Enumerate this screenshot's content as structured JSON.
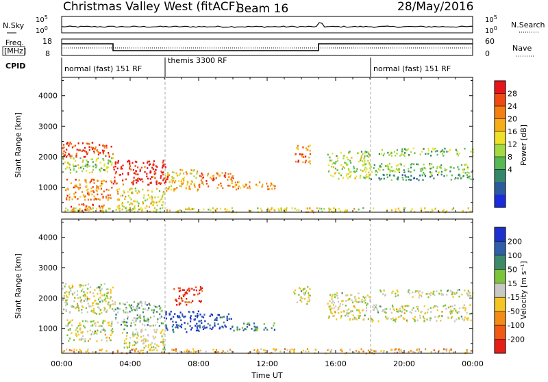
{
  "header": {
    "title": "Christmas Valley West (fitACF)",
    "beam": "Beam 16",
    "date": "28/May/2016"
  },
  "nsky": {
    "label": "N.Sky",
    "y_ticks": [
      "10^5",
      "10^0"
    ],
    "right_label": "N.Search",
    "right_ticks": [
      "10^5",
      "10^0"
    ]
  },
  "freq": {
    "label_line1": "Freq.",
    "label_line2": "[MHz]",
    "y_ticks": [
      "18",
      "8"
    ],
    "right_label": "Nave",
    "right_ticks": [
      "60",
      "0"
    ]
  },
  "cpid": {
    "label": "CPID",
    "segments": [
      {
        "label": "normal (fast) 151 RF",
        "start_hour": 0,
        "end_hour": 6
      },
      {
        "label": "themis 3300 RF",
        "start_hour": 6,
        "end_hour": 18
      },
      {
        "label": "normal (fast) 151 RF",
        "start_hour": 18,
        "end_hour": 24
      }
    ]
  },
  "chart_data": [
    {
      "type": "heatmap",
      "panel": "power",
      "ylabel": "Slant Range [km]",
      "y_ticks": [
        1000,
        2000,
        3000,
        4000
      ],
      "ylim": [
        180,
        4600
      ],
      "xlim_hours": [
        0,
        24
      ],
      "colorbar": {
        "label": "Power [dB]",
        "ticks": [
          "28",
          "24",
          "20",
          "16",
          "12",
          "8",
          "4"
        ],
        "colors": [
          "#e8141b",
          "#f04a13",
          "#f57f10",
          "#f6ae16",
          "#efe12a",
          "#a5d944",
          "#56b956",
          "#36866c",
          "#2b5a9d",
          "#1a2bdc"
        ]
      },
      "echo_bands": [
        {
          "t0": 0.0,
          "t1": 3.0,
          "r0": 2000,
          "r1": 2500,
          "level": 0.85
        },
        {
          "t0": 0.0,
          "t1": 3.0,
          "r0": 1500,
          "r1": 2000,
          "level": 0.45
        },
        {
          "t0": 0.2,
          "t1": 3.0,
          "r0": 600,
          "r1": 1300,
          "level": 0.75
        },
        {
          "t0": 0.5,
          "t1": 2.5,
          "r0": 250,
          "r1": 500,
          "level": 0.8
        },
        {
          "t0": 3.0,
          "t1": 6.2,
          "r0": 1100,
          "r1": 1900,
          "level": 0.95
        },
        {
          "t0": 3.2,
          "t1": 6.0,
          "r0": 300,
          "r1": 1000,
          "level": 0.55
        },
        {
          "t0": 6.0,
          "t1": 8.0,
          "r0": 900,
          "r1": 1600,
          "level": 0.6
        },
        {
          "t0": 8.0,
          "t1": 10.0,
          "r0": 1000,
          "r1": 1500,
          "level": 0.8
        },
        {
          "t0": 10.0,
          "t1": 12.5,
          "r0": 950,
          "r1": 1200,
          "level": 0.7
        },
        {
          "t0": 13.5,
          "t1": 14.5,
          "r0": 1800,
          "r1": 2400,
          "level": 0.75
        },
        {
          "t0": 15.5,
          "t1": 18.0,
          "r0": 1300,
          "r1": 2200,
          "level": 0.45
        },
        {
          "t0": 18.0,
          "t1": 24.0,
          "r0": 1500,
          "r1": 1800,
          "level": 0.4
        },
        {
          "t0": 18.0,
          "t1": 24.0,
          "r0": 1250,
          "r1": 1450,
          "level": 0.3
        },
        {
          "t0": 18.5,
          "t1": 24.0,
          "r0": 2050,
          "r1": 2300,
          "level": 0.4
        },
        {
          "t0": 0.0,
          "t1": 24.0,
          "r0": 200,
          "r1": 350,
          "level": 0.55
        }
      ]
    },
    {
      "type": "heatmap",
      "panel": "velocity",
      "ylabel": "Slant Range [km]",
      "xlabel": "Time UT",
      "x_ticks": [
        "00:00",
        "04:00",
        "08:00",
        "12:00",
        "16:00",
        "20:00",
        "00:00"
      ],
      "y_ticks": [
        1000,
        2000,
        3000,
        4000
      ],
      "ylim": [
        180,
        4600
      ],
      "xlim_hours": [
        0,
        24
      ],
      "colorbar": {
        "label": "Velocity [m s⁻¹]",
        "ticks": [
          "200",
          "100",
          "50",
          "15",
          "-15",
          "-50",
          "-100",
          "-200"
        ],
        "colors": [
          "#1d2fcf",
          "#2e5fa8",
          "#3d8a6a",
          "#7cc43c",
          "#c8c8c4",
          "#f3c624",
          "#f38c14",
          "#f05a14",
          "#e51e16"
        ]
      },
      "echo_bands": [
        {
          "t0": 0.0,
          "t1": 3.0,
          "r0": 1500,
          "r1": 2500,
          "level": 0.5
        },
        {
          "t0": 0.2,
          "t1": 3.0,
          "r0": 600,
          "r1": 1300,
          "level": 0.5
        },
        {
          "t0": 3.0,
          "t1": 6.0,
          "r0": 1100,
          "r1": 1900,
          "level": 0.62
        },
        {
          "t0": 3.5,
          "t1": 6.0,
          "r0": 300,
          "r1": 1000,
          "level": 0.5
        },
        {
          "t0": 6.5,
          "t1": 8.2,
          "r0": 1800,
          "r1": 2400,
          "level": 0.08
        },
        {
          "t0": 6.0,
          "t1": 8.0,
          "r0": 900,
          "r1": 1600,
          "level": 0.92
        },
        {
          "t0": 8.0,
          "t1": 10.0,
          "r0": 1000,
          "r1": 1500,
          "level": 0.85
        },
        {
          "t0": 10.0,
          "t1": 12.5,
          "r0": 950,
          "r1": 1200,
          "level": 0.72
        },
        {
          "t0": 13.5,
          "t1": 14.5,
          "r0": 1800,
          "r1": 2400,
          "level": 0.5
        },
        {
          "t0": 15.5,
          "t1": 18.0,
          "r0": 1300,
          "r1": 2200,
          "level": 0.5
        },
        {
          "t0": 18.0,
          "t1": 24.0,
          "r0": 1500,
          "r1": 1800,
          "level": 0.5
        },
        {
          "t0": 18.0,
          "t1": 24.0,
          "r0": 1250,
          "r1": 1450,
          "level": 0.5
        },
        {
          "t0": 18.5,
          "t1": 24.0,
          "r0": 2050,
          "r1": 2300,
          "level": 0.5
        },
        {
          "t0": 0.0,
          "t1": 24.0,
          "r0": 200,
          "r1": 350,
          "level": 0.35
        }
      ]
    }
  ]
}
